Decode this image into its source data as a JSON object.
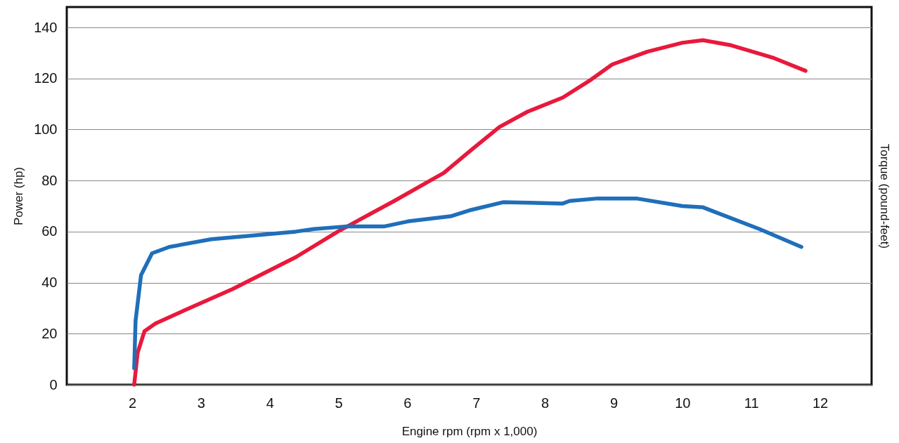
{
  "chart_data": {
    "type": "line",
    "xlabel": "Engine rpm (rpm x 1,000)",
    "ylabel": "Power (hp)",
    "y2label": "Torque (pound-feet)",
    "xlim": [
      1.05,
      12.75
    ],
    "xticks": [
      2,
      3,
      4,
      5,
      6,
      7,
      8,
      9,
      10,
      11,
      12
    ],
    "ylim": [
      0,
      148
    ],
    "yticks": [
      0,
      20,
      40,
      60,
      80,
      100,
      120,
      140
    ],
    "grid": "y",
    "marker": "none",
    "line_style": "solid",
    "series": [
      {
        "color": "#e8193c",
        "x": [
          2.03,
          2.08,
          2.18,
          2.34,
          2.75,
          3.46,
          4.38,
          4.99,
          5.81,
          6.53,
          6.93,
          7.34,
          7.75,
          8.26,
          8.67,
          8.98,
          9.49,
          10.0,
          10.3,
          10.71,
          11.33,
          11.79
        ],
        "values": [
          0,
          12.5,
          21,
          24,
          29,
          37.5,
          50,
          60,
          72,
          83,
          92,
          101,
          107,
          112.5,
          119.5,
          125.5,
          130.5,
          134,
          135,
          133,
          128,
          123
        ]
      },
      {
        "color": "#1f6fba",
        "x": [
          2.03,
          2.05,
          2.13,
          2.29,
          2.54,
          3.15,
          4.38,
          4.64,
          5.1,
          5.66,
          6.01,
          6.63,
          6.93,
          7.39,
          8.26,
          8.36,
          8.77,
          9.33,
          10.0,
          10.3,
          11.12,
          11.73
        ],
        "values": [
          6.5,
          25,
          43,
          51.5,
          54,
          57,
          60,
          61,
          62,
          62,
          64,
          66,
          68.5,
          71.5,
          71,
          72,
          73,
          73,
          70,
          69.5,
          61,
          54
        ]
      }
    ]
  }
}
